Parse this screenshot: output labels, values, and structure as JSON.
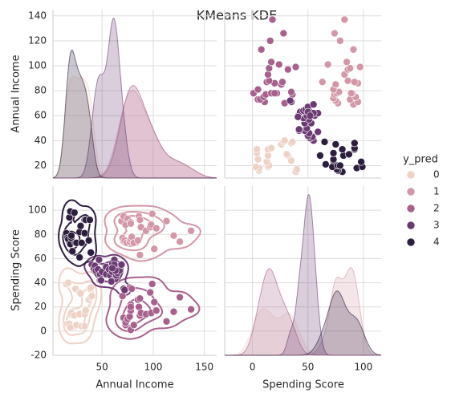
{
  "chart_data": {
    "type": "pairplot",
    "title": "KMeans KDE",
    "x_labels": [
      "Annual Income",
      "Spending Score"
    ],
    "y_labels": [
      "Annual Income",
      "Spending Score"
    ],
    "legend_title": "y_pred",
    "xlim": [
      2,
      162
    ],
    "xticks": [
      50,
      100,
      150
    ],
    "x2lim": [
      -25,
      116
    ],
    "x2ticks": [
      0,
      50,
      100
    ],
    "ylim": [
      10,
      145
    ],
    "yticks": [
      20,
      40,
      60,
      80,
      100,
      120,
      140
    ],
    "y2lim": [
      -20,
      120
    ],
    "y2ticks": [
      -20,
      0,
      20,
      40,
      60,
      80,
      100
    ],
    "grid": true,
    "series": [
      {
        "name": "0",
        "color": "#efd2c6",
        "x": [
          15,
          16,
          17,
          18,
          19,
          19,
          20,
          23,
          24,
          25,
          28,
          28,
          29,
          30,
          33,
          33,
          34,
          37,
          38,
          39,
          39,
          40
        ],
        "y": [
          39,
          6,
          40,
          6,
          3,
          14,
          15,
          13,
          35,
          5,
          14,
          32,
          31,
          4,
          4,
          14,
          17,
          26,
          35,
          36,
          28,
          29
        ]
      },
      {
        "name": "1",
        "color": "#d497a7",
        "x": [
          69,
          70,
          71,
          72,
          73,
          74,
          75,
          77,
          78,
          78,
          78,
          79,
          81,
          85,
          86,
          87,
          87,
          88,
          93,
          97,
          98,
          99,
          101,
          103,
          113,
          120,
          126,
          137
        ],
        "y": [
          91,
          77,
          95,
          75,
          88,
          73,
          93,
          74,
          90,
          76,
          89,
          78,
          73,
          75,
          95,
          63,
          92,
          86,
          83,
          86,
          88,
          97,
          68,
          85,
          91,
          79,
          74,
          83
        ]
      },
      {
        "name": "2",
        "color": "#a8618d",
        "x": [
          70,
          71,
          73,
          73,
          75,
          77,
          77,
          78,
          78,
          78,
          78,
          79,
          81,
          85,
          86,
          87,
          87,
          88,
          93,
          97,
          98,
          99,
          101,
          103,
          113,
          120,
          126,
          137
        ],
        "y": [
          29,
          11,
          5,
          7,
          10,
          12,
          36,
          22,
          17,
          20,
          1,
          35,
          5,
          26,
          20,
          27,
          13,
          15,
          14,
          32,
          15,
          39,
          24,
          17,
          8,
          16,
          28,
          18
        ]
      },
      {
        "name": "3",
        "color": "#6b3a72",
        "x": [
          40,
          42,
          43,
          44,
          46,
          47,
          48,
          48,
          49,
          50,
          54,
          54,
          57,
          58,
          60,
          60,
          61,
          62,
          63,
          63,
          64,
          65,
          67,
          69,
          71,
          72,
          62,
          59,
          63,
          60
        ],
        "y": [
          55,
          52,
          54,
          50,
          51,
          59,
          47,
          42,
          42,
          49,
          53,
          47,
          51,
          46,
          49,
          56,
          42,
          59,
          43,
          52,
          46,
          48,
          50,
          55,
          35,
          34,
          55,
          41,
          50,
          52
        ]
      },
      {
        "name": "4",
        "color": "#2d1e3e",
        "x": [
          15,
          16,
          17,
          18,
          19,
          19,
          20,
          20,
          21,
          23,
          24,
          25,
          28,
          28,
          29,
          30,
          33,
          33,
          34,
          37,
          38,
          39
        ],
        "y": [
          81,
          77,
          76,
          94,
          72,
          99,
          77,
          79,
          66,
          98,
          73,
          73,
          82,
          61,
          87,
          73,
          92,
          81,
          92,
          75,
          92,
          65
        ]
      }
    ]
  }
}
